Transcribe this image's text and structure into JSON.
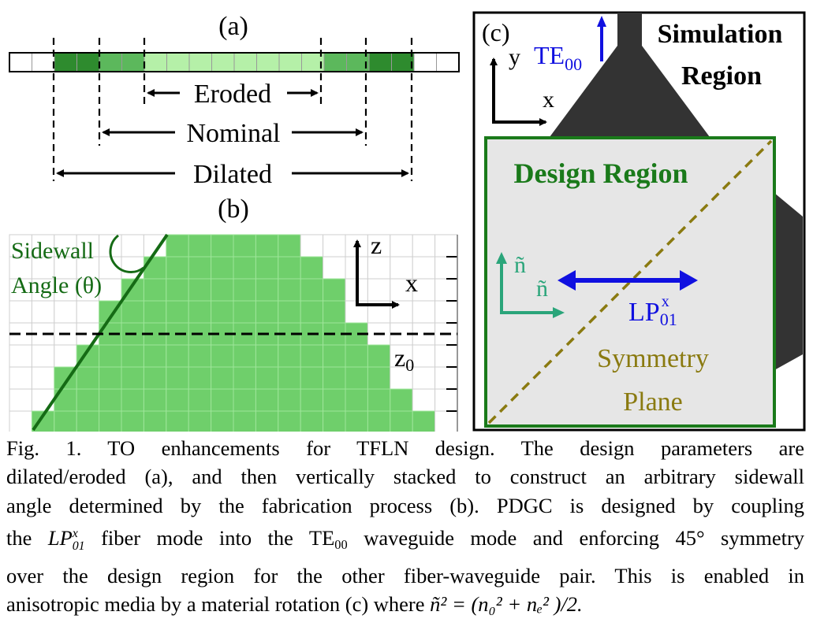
{
  "panel_a": {
    "label": "(a)",
    "eroded": "Eroded",
    "nominal": "Nominal",
    "dilated": "Dilated"
  },
  "panel_b": {
    "label": "(b)",
    "sidewall_line1": "Sidewall",
    "sidewall_line2": "Angle (θ)",
    "axis_z": "z",
    "axis_x": "x",
    "z0_main": "z",
    "z0_sub": "0"
  },
  "panel_c": {
    "label": "(c)",
    "axis_y": "y",
    "axis_x": "x",
    "te_main": "TE",
    "te_sub": "00",
    "sim_line1": "Simulation",
    "sim_line2": "Region",
    "design_region": "Design Region",
    "n_tilde_v": "ñ",
    "n_tilde_h": "ñ",
    "lp_main": "LP",
    "lp_sup": "x",
    "lp_sub": "01",
    "sym_line1": "Symmetry",
    "sym_line2": "Plane"
  },
  "colors": {
    "green_dark": "#2e8b2e",
    "green_mid": "#5cb85c",
    "green_light": "#b5f0a8",
    "fill_green": "#6fcf6b",
    "outline_green": "#1a7a1a",
    "blue": "#1010e0",
    "teal": "#2aa57a",
    "olive": "#8a7a10",
    "dark_gray": "#333333",
    "design_gray": "#e6e6e6"
  },
  "caption": {
    "l1": "Fig. 1. TO enhancements for TFLN design. The design parameters are",
    "l2": "dilated/eroded (a), and then vertically stacked to construct an arbitrary sidewall",
    "l3": "angle determined by the fabrication process (b). PDGC is designed by coupling",
    "l4_a": "the",
    "l4_lp": "LP",
    "l4_sup": "x",
    "l4_sub": "01",
    "l4_b": "fiber mode into the TE",
    "l4_te_sub": "00",
    "l4_c": "waveguide mode and enforcing 45° symmetry",
    "l5": "over the design region for the other fiber-waveguide pair. This is enabled in",
    "l6_a": "anisotropic media by a material rotation (c) where",
    "l6_eq": "ñ² = (n₀² + nₑ² )/2."
  }
}
